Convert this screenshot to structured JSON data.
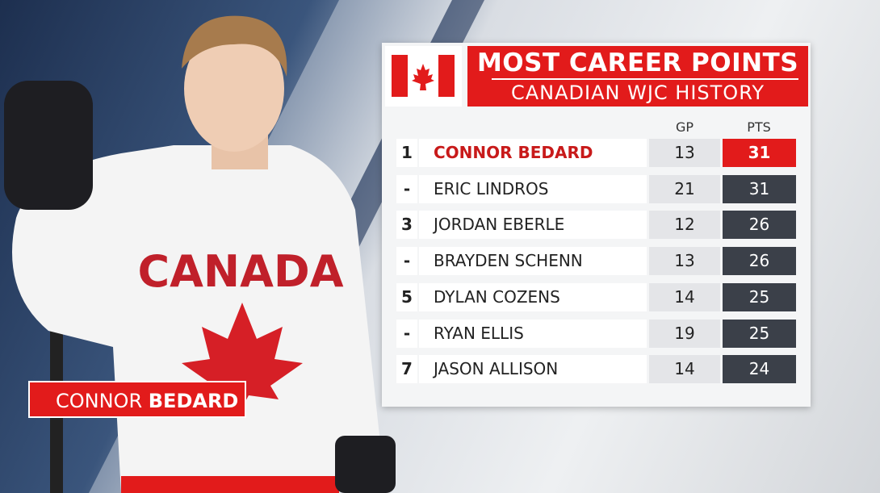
{
  "header": {
    "title": "MOST CAREER POINTS",
    "subtitle": "CANADIAN WJC HISTORY"
  },
  "table": {
    "columns": [
      "GP",
      "PTS"
    ],
    "rows": [
      [
        "1",
        "CONNOR BEDARD",
        13,
        31
      ],
      [
        "-",
        "ERIC LINDROS",
        21,
        31
      ],
      [
        "3",
        "JORDAN EBERLE",
        12,
        26
      ],
      [
        "-",
        "BRAYDEN SCHENN",
        13,
        26
      ],
      [
        "5",
        "DYLAN COZENS",
        14,
        25
      ],
      [
        "-",
        "RYAN ELLIS",
        19,
        25
      ],
      [
        "7",
        "JASON ALLISON",
        14,
        24
      ]
    ]
  },
  "photo": {
    "jersey_text": "CANADA"
  },
  "caption": {
    "first": "CONNOR",
    "last": "BEDARD"
  }
}
